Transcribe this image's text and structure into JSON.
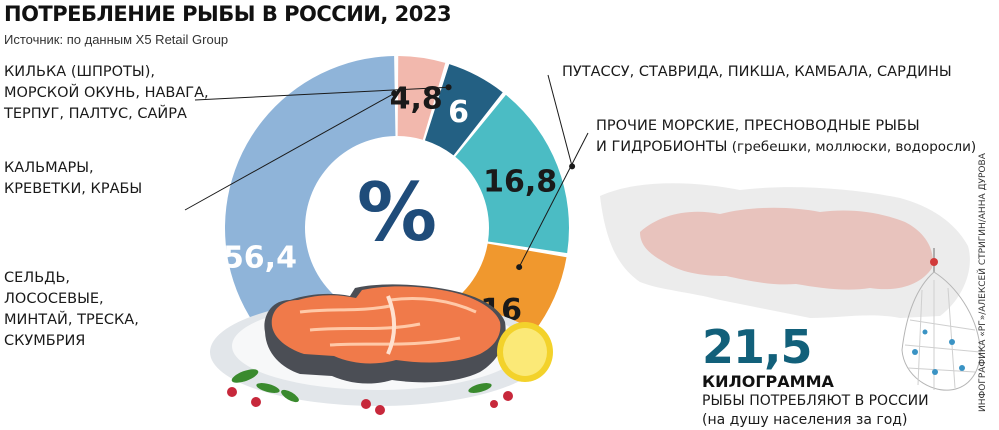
{
  "chart_data": {
    "type": "pie",
    "title": "ПОТРЕБЛЕНИЕ РЫБЫ В РОССИИ, 2023",
    "source": "Источник:  по данным X5 Retail Group",
    "center_label": "%",
    "unit": "%",
    "segments": [
      {
        "value": 56.4,
        "value_label": "56,4",
        "color": "#8fb4d9",
        "text_color": "#ffffff",
        "label_lines": [
          "СЕЛЬДЬ,",
          "ЛОСОСЕВЫЕ,",
          "МИНТАЙ, ТРЕСКА,",
          "СКУМБРИЯ"
        ]
      },
      {
        "value": 4.8,
        "value_label": "4,8",
        "color": "#f2b8ad",
        "text_color": "#1a1a1a",
        "label_lines": [
          "КАЛЬМАРЫ,",
          "КРЕВЕТКИ, КРАБЫ"
        ]
      },
      {
        "value": 6,
        "value_label": "6",
        "color": "#236083",
        "text_color": "#ffffff",
        "label_lines": [
          "КИЛЬКА (ШПРОТЫ),",
          "МОРСКОЙ ОКУНЬ, НАВАГА,",
          "ТЕРПУГ, ПАЛТУС, САЙРА"
        ]
      },
      {
        "value": 16.8,
        "value_label": "16,8",
        "color": "#4bbcc4",
        "text_color": "#1a1a1a",
        "label_lines": [
          "ПУТАССУ, СТАВРИДА, ПИКША, КАМБАЛА, САРДИНЫ"
        ]
      },
      {
        "value": 16,
        "value_label": "16",
        "color": "#f0982e",
        "text_color": "#1a1a1a",
        "label_lines": [
          "ПРОЧИЕ МОРСКИЕ, ПРЕСНОВОДНЫЕ РЫБЫ",
          "И ГИДРОБИОНТЫ"
        ],
        "label_sub": "(гребешки, моллюски, водоросли)"
      }
    ]
  },
  "stat": {
    "value": "21,5",
    "unit": "КИЛОГРАММА",
    "caption_lines": [
      "РЫБЫ ПОТРЕБЛЯЮТ В РОССИИ",
      "(на душу населения за год)"
    ]
  },
  "credit": "ИНФОГРАФИКА «РГ»/АЛЕКСЕЙ СТРИГИН/АННА ДУРОВА",
  "colors": {
    "map": "#e9c9c4",
    "map_light": "#eeeeee",
    "leader_dot": "#1a1a1a"
  }
}
